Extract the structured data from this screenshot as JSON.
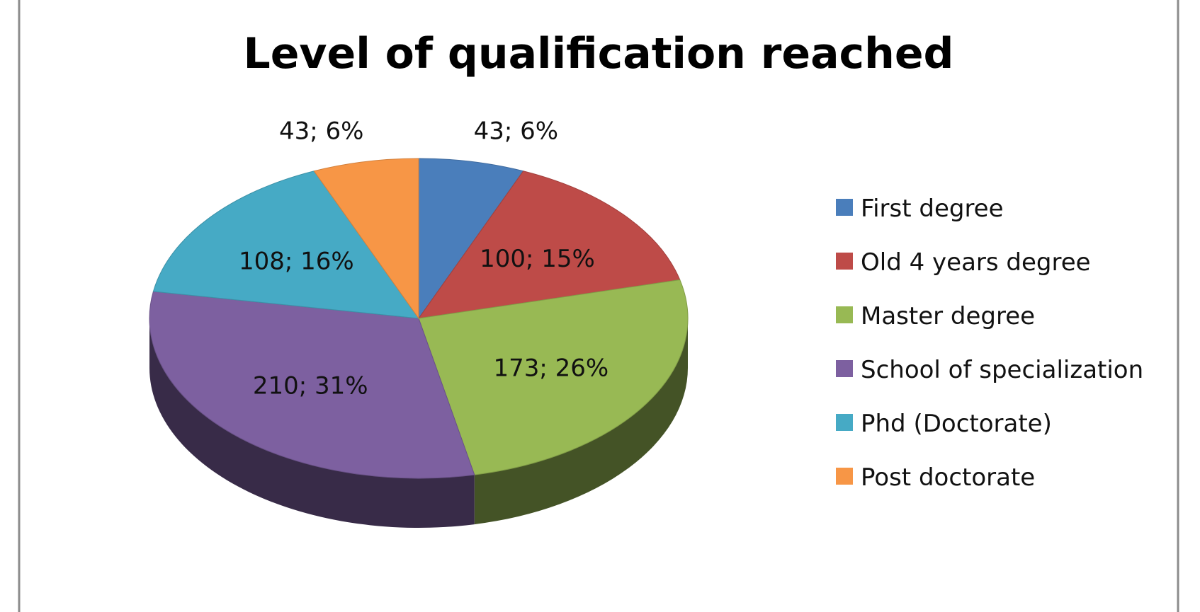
{
  "chart_data": {
    "type": "pie",
    "title": "Level of qualification reached",
    "legend_position": "right",
    "categories": [
      "First degree",
      "Old 4 years degree",
      "Master degree",
      "School of specialization",
      "Phd (Doctorate)",
      "Post doctorate"
    ],
    "values": [
      43,
      100,
      173,
      210,
      108,
      43
    ],
    "percent_labels": [
      "6%",
      "15%",
      "26%",
      "31%",
      "16%",
      "6%"
    ],
    "data_labels": [
      "43; 6%",
      "100; 15%",
      "173; 26%",
      "210; 31%",
      "108; 16%",
      "43; 6%"
    ],
    "colors": [
      "#4a7ebb",
      "#be4b48",
      "#98b954",
      "#7d60a0",
      "#46aac5",
      "#f79646"
    ],
    "style": "3d-pie"
  }
}
